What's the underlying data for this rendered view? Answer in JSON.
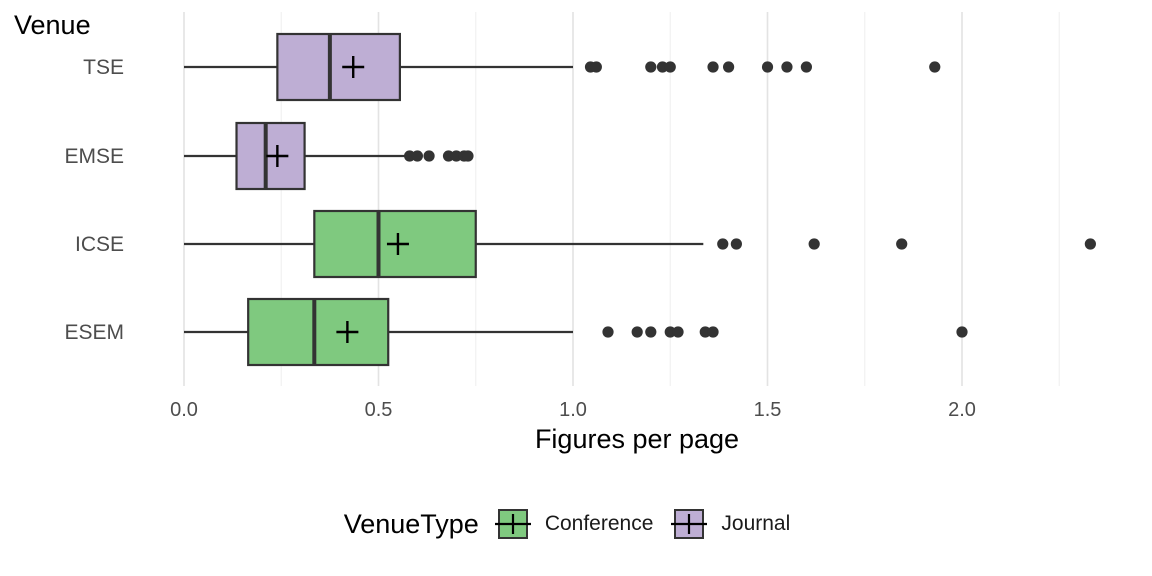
{
  "chart_data": {
    "type": "boxplot",
    "title": "Venue",
    "xlabel": "Figures per page",
    "ylabel": "",
    "xlim": [
      0,
      2.35
    ],
    "x_ticks": [
      {
        "value": 0,
        "label": "0.0"
      },
      {
        "value": 0.5,
        "label": "0.5"
      },
      {
        "value": 1.0,
        "label": "1.0"
      },
      {
        "value": 1.5,
        "label": "1.5"
      },
      {
        "value": 2.0,
        "label": "2.0"
      }
    ],
    "grid": true,
    "legend": {
      "title": "VenueType",
      "position": "bottom",
      "items": [
        {
          "name": "Conference",
          "color": "#7fc97f"
        },
        {
          "name": "Journal",
          "color": "#beaed4"
        }
      ]
    },
    "categories": [
      "TSE",
      "EMSE",
      "ICSE",
      "ESEM"
    ],
    "boxes": [
      {
        "category": "TSE",
        "type": "Journal",
        "whisker_low": 0.0,
        "q1": 0.24,
        "median": 0.375,
        "q3": 0.555,
        "whisker_high": 1.0,
        "mean": 0.435,
        "outliers": [
          1.045,
          1.06,
          1.2,
          1.23,
          1.25,
          1.36,
          1.4,
          1.5,
          1.55,
          1.6,
          1.93
        ]
      },
      {
        "category": "EMSE",
        "type": "Journal",
        "whisker_low": 0.0,
        "q1": 0.135,
        "median": 0.21,
        "q3": 0.31,
        "whisker_high": 0.575,
        "mean": 0.24,
        "outliers": [
          0.58,
          0.6,
          0.63,
          0.68,
          0.7,
          0.72,
          0.73
        ]
      },
      {
        "category": "ICSE",
        "type": "Conference",
        "whisker_low": 0.0,
        "q1": 0.335,
        "median": 0.5,
        "q3": 0.75,
        "whisker_high": 1.335,
        "mean": 0.55,
        "outliers": [
          1.385,
          1.42,
          1.62,
          1.845,
          2.33
        ]
      },
      {
        "category": "ESEM",
        "type": "Conference",
        "whisker_low": 0.0,
        "q1": 0.165,
        "median": 0.335,
        "q3": 0.525,
        "whisker_high": 1.0,
        "mean": 0.42,
        "outliers": [
          1.09,
          1.165,
          1.2,
          1.25,
          1.27,
          1.34,
          1.36,
          2.0
        ]
      }
    ]
  }
}
